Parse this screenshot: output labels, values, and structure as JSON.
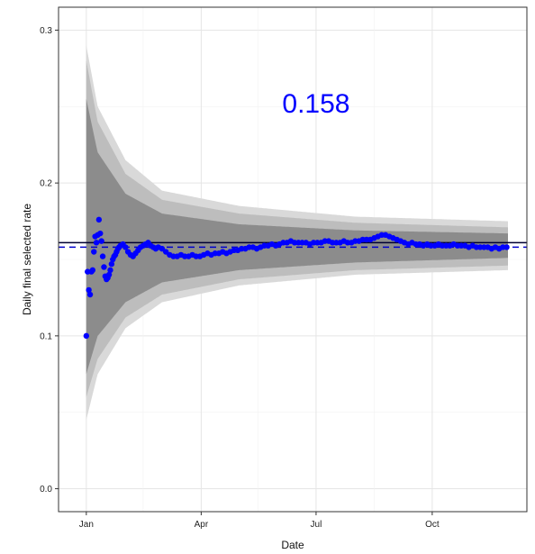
{
  "chart_data": {
    "type": "scatter",
    "title": "",
    "xlabel": "Date",
    "ylabel": "Daily final selected rate",
    "annotation": "0.158",
    "x_tick_labels": [
      "Jan",
      "Apr",
      "Jul",
      "Oct"
    ],
    "x_ticks": [
      "2016-01-01",
      "2016-04-01",
      "2016-07-01",
      "2016-10-01"
    ],
    "y_ticks": [
      0.0,
      0.1,
      0.2,
      0.3
    ],
    "y_tick_labels": [
      "0.0",
      "0.1",
      "0.2",
      "0.3"
    ],
    "xlim": [
      "2015-12-10",
      "2016-12-15"
    ],
    "ylim": [
      -0.015,
      0.315
    ],
    "grid": true,
    "reference_lines": [
      {
        "style": "solid",
        "value": 0.161,
        "color": "#000033"
      },
      {
        "style": "dashed",
        "value": 0.158,
        "color": "#0000cc"
      }
    ],
    "bands": {
      "center": 0.158,
      "start_date": "2016-01-01",
      "end_date": "2016-11-30",
      "outer_color": "#d9d9d9",
      "middle_color": "#bdbdbd",
      "inner_color": "#8c8c8c",
      "outer_halfwidth_at": [
        {
          "date": "2016-01-01",
          "upper": 0.29,
          "lower": 0.045
        },
        {
          "date": "2016-01-10",
          "upper": 0.25,
          "lower": 0.075
        },
        {
          "date": "2016-02-01",
          "upper": 0.215,
          "lower": 0.105
        },
        {
          "date": "2016-03-01",
          "upper": 0.195,
          "lower": 0.122
        },
        {
          "date": "2016-05-01",
          "upper": 0.185,
          "lower": 0.133
        },
        {
          "date": "2016-08-01",
          "upper": 0.178,
          "lower": 0.14
        },
        {
          "date": "2016-11-30",
          "upper": 0.175,
          "lower": 0.143
        }
      ],
      "middle_halfwidth_at": [
        {
          "date": "2016-01-01",
          "upper": 0.28,
          "lower": 0.06
        },
        {
          "date": "2016-01-10",
          "upper": 0.24,
          "lower": 0.085
        },
        {
          "date": "2016-02-01",
          "upper": 0.206,
          "lower": 0.112
        },
        {
          "date": "2016-03-01",
          "upper": 0.189,
          "lower": 0.127
        },
        {
          "date": "2016-05-01",
          "upper": 0.18,
          "lower": 0.137
        },
        {
          "date": "2016-08-01",
          "upper": 0.174,
          "lower": 0.143
        },
        {
          "date": "2016-11-30",
          "upper": 0.171,
          "lower": 0.146
        }
      ],
      "inner_halfwidth_at": [
        {
          "date": "2016-01-01",
          "upper": 0.255,
          "lower": 0.075
        },
        {
          "date": "2016-01-10",
          "upper": 0.22,
          "lower": 0.1
        },
        {
          "date": "2016-02-01",
          "upper": 0.193,
          "lower": 0.122
        },
        {
          "date": "2016-03-01",
          "upper": 0.18,
          "lower": 0.135
        },
        {
          "date": "2016-05-01",
          "upper": 0.173,
          "lower": 0.143
        },
        {
          "date": "2016-08-01",
          "upper": 0.169,
          "lower": 0.148
        },
        {
          "date": "2016-11-30",
          "upper": 0.167,
          "lower": 0.151
        }
      ]
    },
    "series": [
      {
        "color": "#0000ff",
        "points": [
          [
            "2016-01-01",
            0.1
          ],
          [
            "2016-01-02",
            0.142
          ],
          [
            "2016-01-03",
            0.13
          ],
          [
            "2016-01-04",
            0.127
          ],
          [
            "2016-01-05",
            0.142
          ],
          [
            "2016-01-06",
            0.143
          ],
          [
            "2016-01-07",
            0.155
          ],
          [
            "2016-01-08",
            0.165
          ],
          [
            "2016-01-09",
            0.161
          ],
          [
            "2016-01-10",
            0.166
          ],
          [
            "2016-01-11",
            0.176
          ],
          [
            "2016-01-12",
            0.167
          ],
          [
            "2016-01-13",
            0.162
          ],
          [
            "2016-01-14",
            0.152
          ],
          [
            "2016-01-15",
            0.145
          ],
          [
            "2016-01-16",
            0.139
          ],
          [
            "2016-01-17",
            0.137
          ],
          [
            "2016-01-18",
            0.138
          ],
          [
            "2016-01-19",
            0.14
          ],
          [
            "2016-01-20",
            0.143
          ],
          [
            "2016-01-21",
            0.147
          ],
          [
            "2016-01-22",
            0.15
          ],
          [
            "2016-01-23",
            0.152
          ],
          [
            "2016-01-24",
            0.153
          ],
          [
            "2016-01-25",
            0.155
          ],
          [
            "2016-01-26",
            0.157
          ],
          [
            "2016-01-27",
            0.158
          ],
          [
            "2016-01-28",
            0.159
          ],
          [
            "2016-01-30",
            0.16
          ],
          [
            "2016-02-01",
            0.158
          ],
          [
            "2016-02-03",
            0.155
          ],
          [
            "2016-02-05",
            0.153
          ],
          [
            "2016-02-07",
            0.152
          ],
          [
            "2016-02-09",
            0.154
          ],
          [
            "2016-02-11",
            0.156
          ],
          [
            "2016-02-13",
            0.158
          ],
          [
            "2016-02-15",
            0.159
          ],
          [
            "2016-02-17",
            0.16
          ],
          [
            "2016-02-19",
            0.161
          ],
          [
            "2016-02-21",
            0.159
          ],
          [
            "2016-02-23",
            0.158
          ],
          [
            "2016-02-25",
            0.157
          ],
          [
            "2016-02-27",
            0.158
          ],
          [
            "2016-03-01",
            0.157
          ],
          [
            "2016-03-04",
            0.155
          ],
          [
            "2016-03-07",
            0.153
          ],
          [
            "2016-03-10",
            0.152
          ],
          [
            "2016-03-13",
            0.152
          ],
          [
            "2016-03-16",
            0.153
          ],
          [
            "2016-03-19",
            0.152
          ],
          [
            "2016-03-22",
            0.152
          ],
          [
            "2016-03-25",
            0.153
          ],
          [
            "2016-03-28",
            0.152
          ],
          [
            "2016-03-31",
            0.152
          ],
          [
            "2016-04-03",
            0.153
          ],
          [
            "2016-04-06",
            0.154
          ],
          [
            "2016-04-09",
            0.153
          ],
          [
            "2016-04-12",
            0.154
          ],
          [
            "2016-04-15",
            0.154
          ],
          [
            "2016-04-18",
            0.155
          ],
          [
            "2016-04-21",
            0.154
          ],
          [
            "2016-04-24",
            0.155
          ],
          [
            "2016-04-27",
            0.156
          ],
          [
            "2016-04-30",
            0.156
          ],
          [
            "2016-05-03",
            0.157
          ],
          [
            "2016-05-06",
            0.157
          ],
          [
            "2016-05-09",
            0.158
          ],
          [
            "2016-05-12",
            0.158
          ],
          [
            "2016-05-15",
            0.157
          ],
          [
            "2016-05-18",
            0.158
          ],
          [
            "2016-05-21",
            0.159
          ],
          [
            "2016-05-24",
            0.159
          ],
          [
            "2016-05-27",
            0.16
          ],
          [
            "2016-05-30",
            0.159
          ],
          [
            "2016-06-02",
            0.16
          ],
          [
            "2016-06-05",
            0.161
          ],
          [
            "2016-06-08",
            0.161
          ],
          [
            "2016-06-11",
            0.162
          ],
          [
            "2016-06-14",
            0.161
          ],
          [
            "2016-06-17",
            0.161
          ],
          [
            "2016-06-20",
            0.161
          ],
          [
            "2016-06-23",
            0.161
          ],
          [
            "2016-06-26",
            0.16
          ],
          [
            "2016-06-29",
            0.161
          ],
          [
            "2016-07-02",
            0.161
          ],
          [
            "2016-07-05",
            0.161
          ],
          [
            "2016-07-08",
            0.162
          ],
          [
            "2016-07-11",
            0.162
          ],
          [
            "2016-07-14",
            0.161
          ],
          [
            "2016-07-17",
            0.161
          ],
          [
            "2016-07-20",
            0.161
          ],
          [
            "2016-07-23",
            0.162
          ],
          [
            "2016-07-26",
            0.161
          ],
          [
            "2016-07-29",
            0.161
          ],
          [
            "2016-08-01",
            0.162
          ],
          [
            "2016-08-04",
            0.162
          ],
          [
            "2016-08-07",
            0.163
          ],
          [
            "2016-08-10",
            0.163
          ],
          [
            "2016-08-13",
            0.163
          ],
          [
            "2016-08-16",
            0.164
          ],
          [
            "2016-08-19",
            0.165
          ],
          [
            "2016-08-22",
            0.166
          ],
          [
            "2016-08-25",
            0.166
          ],
          [
            "2016-08-28",
            0.165
          ],
          [
            "2016-08-31",
            0.164
          ],
          [
            "2016-09-03",
            0.163
          ],
          [
            "2016-09-06",
            0.162
          ],
          [
            "2016-09-09",
            0.161
          ],
          [
            "2016-09-12",
            0.16
          ],
          [
            "2016-09-15",
            0.161
          ],
          [
            "2016-09-18",
            0.16
          ],
          [
            "2016-09-21",
            0.16
          ],
          [
            "2016-09-24",
            0.159
          ],
          [
            "2016-09-27",
            0.16
          ],
          [
            "2016-09-30",
            0.159
          ],
          [
            "2016-10-03",
            0.159
          ],
          [
            "2016-10-06",
            0.16
          ],
          [
            "2016-10-09",
            0.159
          ],
          [
            "2016-10-12",
            0.159
          ],
          [
            "2016-10-15",
            0.159
          ],
          [
            "2016-10-18",
            0.16
          ],
          [
            "2016-10-21",
            0.159
          ],
          [
            "2016-10-24",
            0.159
          ],
          [
            "2016-10-27",
            0.159
          ],
          [
            "2016-10-30",
            0.158
          ],
          [
            "2016-11-02",
            0.159
          ],
          [
            "2016-11-05",
            0.158
          ],
          [
            "2016-11-08",
            0.158
          ],
          [
            "2016-11-11",
            0.158
          ],
          [
            "2016-11-14",
            0.158
          ],
          [
            "2016-11-17",
            0.157
          ],
          [
            "2016-11-20",
            0.158
          ],
          [
            "2016-11-23",
            0.157
          ],
          [
            "2016-11-26",
            0.158
          ],
          [
            "2016-11-29",
            0.158
          ]
        ]
      }
    ]
  }
}
